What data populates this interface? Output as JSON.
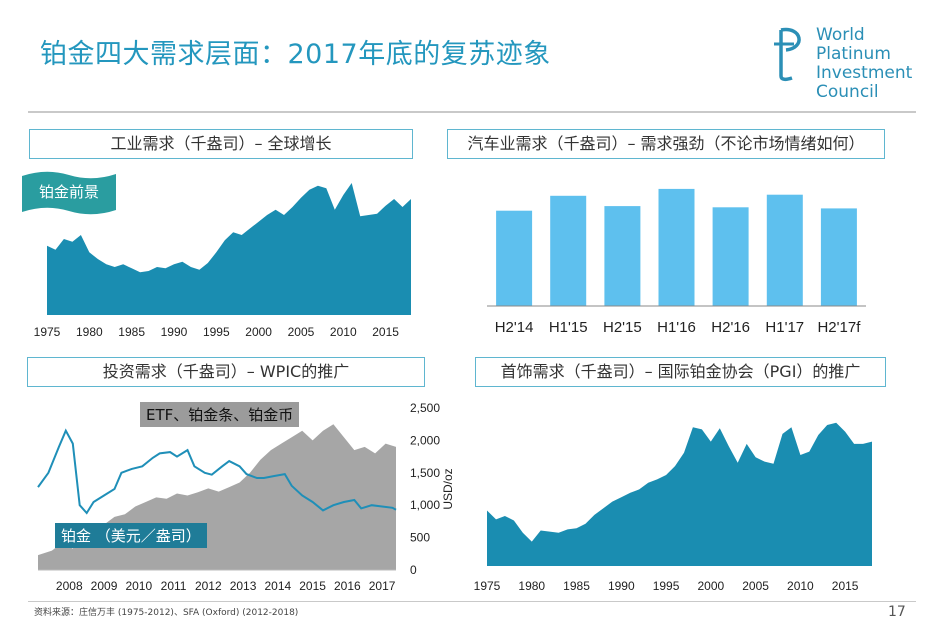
{
  "slide": {
    "title": "铂金四大需求层面：2017年底的复苏迹象",
    "logo_lines": [
      "World",
      "Platinum",
      "Investment",
      "Council"
    ],
    "badge": "铂金前景",
    "source": "资料来源：庄信万丰 (1975-2012)、SFA (Oxford) (2012-2018)",
    "page": "17",
    "accent_color": "#2497be",
    "area_color": "#1a8db1",
    "bar_color": "#5ec0ee",
    "gray_color": "#a6a6a6"
  },
  "chart_data": [
    {
      "type": "area",
      "title": "工业需求（千盎司）– 全球增长",
      "x_ticks": [
        "1975",
        "1980",
        "1985",
        "1990",
        "1995",
        "2000",
        "2005",
        "2010",
        "2015"
      ],
      "x": [
        1975,
        1976,
        1977,
        1978,
        1979,
        1980,
        1981,
        1982,
        1983,
        1984,
        1985,
        1986,
        1987,
        1988,
        1989,
        1990,
        1991,
        1992,
        1993,
        1994,
        1995,
        1996,
        1997,
        1998,
        1999,
        2000,
        2001,
        2002,
        2003,
        2004,
        2005,
        2006,
        2007,
        2008,
        2009,
        2010,
        2011,
        2012,
        2013,
        2014,
        2015,
        2016,
        2017,
        2018
      ],
      "values": [
        52,
        49,
        57,
        55,
        60,
        47,
        42,
        38,
        36,
        38,
        35,
        32,
        33,
        36,
        35,
        38,
        40,
        36,
        34,
        39,
        47,
        56,
        62,
        60,
        65,
        70,
        75,
        79,
        75,
        81,
        88,
        94,
        97,
        95,
        79,
        90,
        99,
        74,
        75,
        76,
        82,
        87,
        81,
        87
      ],
      "ylim": [
        0,
        105
      ],
      "grid": false
    },
    {
      "type": "bar",
      "title": "汽车业需求（千盎司）– 需求强劲（不论市场情绪如何）",
      "categories": [
        "H2'14",
        "H1'15",
        "H2'15",
        "H1'16",
        "H2'16",
        "H1'17",
        "H2'17f"
      ],
      "values": [
        83,
        96,
        87,
        102,
        86,
        97,
        85
      ],
      "ylim": [
        0,
        115
      ],
      "grid": false
    },
    {
      "type": "area",
      "title": "投资需求（千盎司）– WPIC的推广",
      "x_ticks": [
        "2008",
        "2009",
        "2010",
        "2011",
        "2012",
        "2013",
        "2014",
        "2015",
        "2016",
        "2017"
      ],
      "y_ticks": [
        "0",
        "500",
        "1,000",
        "1,500",
        "2,000",
        "2,500"
      ],
      "ylabel": "USD/oz",
      "ylim": [
        0,
        2500
      ],
      "series": [
        {
          "name": "ETF、铂金条、铂金币",
          "type": "area",
          "x": [
            2007.6,
            2008.0,
            2008.3,
            2008.6,
            2008.9,
            2009.2,
            2009.5,
            2009.8,
            2010.1,
            2010.4,
            2010.7,
            2011.0,
            2011.3,
            2011.6,
            2011.9,
            2012.2,
            2012.5,
            2012.8,
            2013.1,
            2013.4,
            2013.7,
            2014.0,
            2014.3,
            2014.6,
            2014.9,
            2015.2,
            2015.5,
            2015.8,
            2016.1,
            2016.4,
            2016.7,
            2017.0,
            2017.3,
            2017.6,
            2017.9
          ],
          "values": [
            230,
            300,
            420,
            330,
            580,
            650,
            700,
            820,
            860,
            980,
            1050,
            1120,
            1100,
            1180,
            1150,
            1200,
            1260,
            1210,
            1280,
            1350,
            1500,
            1700,
            1850,
            1950,
            2050,
            2150,
            2000,
            2150,
            2250,
            2050,
            1850,
            1900,
            1800,
            1950,
            1900
          ]
        },
        {
          "name": "铂金 （美元／盎司）",
          "type": "line",
          "x": [
            2007.6,
            2007.9,
            2008.2,
            2008.4,
            2008.6,
            2008.8,
            2009.0,
            2009.2,
            2009.5,
            2009.8,
            2010.0,
            2010.3,
            2010.6,
            2010.9,
            2011.1,
            2011.4,
            2011.6,
            2011.9,
            2012.1,
            2012.4,
            2012.6,
            2012.9,
            2013.1,
            2013.4,
            2013.6,
            2013.9,
            2014.1,
            2014.4,
            2014.7,
            2014.9,
            2015.2,
            2015.5,
            2015.8,
            2016.1,
            2016.4,
            2016.7,
            2016.9,
            2017.2,
            2017.5,
            2017.8,
            2017.9
          ],
          "values": [
            1280,
            1500,
            1900,
            2150,
            1950,
            1000,
            880,
            1050,
            1150,
            1250,
            1500,
            1560,
            1600,
            1730,
            1800,
            1820,
            1750,
            1850,
            1600,
            1500,
            1470,
            1600,
            1680,
            1600,
            1480,
            1420,
            1420,
            1450,
            1480,
            1300,
            1150,
            1050,
            920,
            1000,
            1050,
            1080,
            950,
            1000,
            980,
            960,
            930
          ]
        }
      ],
      "grid": false
    },
    {
      "type": "area",
      "title": "首饰需求（千盎司）– 国际铂金协会（PGI）的推广",
      "x_ticks": [
        "1975",
        "1980",
        "1985",
        "1990",
        "1995",
        "2000",
        "2005",
        "2010",
        "2015"
      ],
      "x": [
        1975,
        1976,
        1977,
        1978,
        1979,
        1980,
        1981,
        1982,
        1983,
        1984,
        1985,
        1986,
        1987,
        1988,
        1989,
        1990,
        1991,
        1992,
        1993,
        1994,
        1995,
        1996,
        1997,
        1998,
        1999,
        2000,
        2001,
        2002,
        2003,
        2004,
        2005,
        2006,
        2007,
        2008,
        2009,
        2010,
        2011,
        2012,
        2013,
        2014,
        2015,
        2016,
        2017,
        2018
      ],
      "values": [
        50,
        42,
        45,
        41,
        30,
        22,
        32,
        31,
        30,
        33,
        34,
        38,
        46,
        52,
        58,
        62,
        66,
        69,
        75,
        78,
        82,
        90,
        102,
        125,
        123,
        112,
        124,
        108,
        93,
        110,
        98,
        94,
        92,
        119,
        125,
        100,
        103,
        118,
        127,
        129,
        121,
        110,
        110,
        112
      ],
      "ylim": [
        0,
        145
      ],
      "grid": false
    }
  ]
}
